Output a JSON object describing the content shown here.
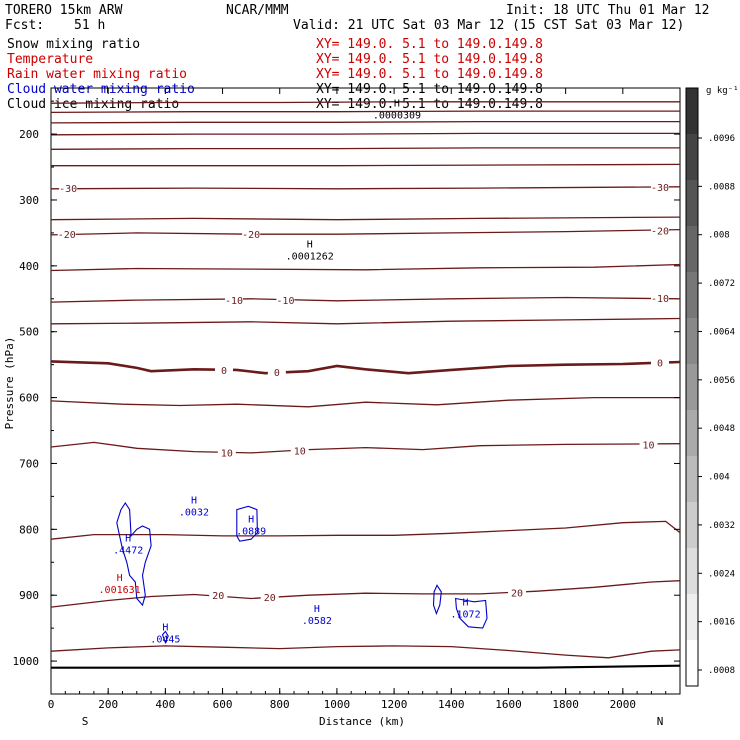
{
  "header": {
    "model": "TORERO  15km ARW",
    "org": "NCAR/MMM",
    "init": "Init: 18 UTC Thu 01 Mar 12",
    "fcst_label": "Fcst:",
    "fcst_value": "51 h",
    "valid": "Valid: 21 UTC Sat 03 Mar 12 (15 CST Sat 03 Mar 12)"
  },
  "fields": [
    {
      "name": "Snow mixing ratio",
      "coords": "XY= 149.0.  5.1 to 149.0.149.8",
      "color": "#000000",
      "coord_color": "#cc0000"
    },
    {
      "name": "Temperature",
      "coords": "XY= 149.0.  5.1 to 149.0.149.8",
      "color": "#cc0000",
      "coord_color": "#cc0000"
    },
    {
      "name": "Rain water mixing ratio",
      "coords": "XY= 149.0.  5.1 to 149.0.149.8",
      "color": "#cc0000",
      "coord_color": "#cc0000"
    },
    {
      "name": "Cloud water mixing ratio",
      "coords": "XY= 149.0.  5.1 to 149.0.149.8",
      "color": "#0000cc",
      "coord_color": "#000000"
    },
    {
      "name": "Cloud ice mixing ratio",
      "coords": "XY= 149.0.  5.1 to 149.0.149.8",
      "color": "#000000",
      "coord_color": "#000000"
    }
  ],
  "colors": {
    "temperature": "#6b1a1a",
    "cloud_water": "#0000cc",
    "rain_water": "#cc0000",
    "axis": "#000000"
  },
  "chart_data": {
    "type": "contour",
    "xlabel": "Distance (km)",
    "ylabel": "Pressure (hPa)",
    "xlim": [
      0,
      2200
    ],
    "ylim": [
      1050,
      130
    ],
    "x_ticks": [
      0,
      200,
      400,
      600,
      800,
      1000,
      1200,
      1400,
      1600,
      1800,
      2000
    ],
    "y_ticks": [
      200,
      300,
      400,
      500,
      600,
      700,
      800,
      900,
      1000
    ],
    "x_end_labels": {
      "left": "S",
      "right": "N"
    },
    "temperature_contours": [
      {
        "level": -45,
        "points": [
          [
            0,
            153
          ],
          [
            400,
            152
          ],
          [
            800,
            152
          ],
          [
            1200,
            151
          ],
          [
            1600,
            151
          ],
          [
            2200,
            151
          ]
        ]
      },
      {
        "level": -45,
        "points": [
          [
            0,
            167
          ],
          [
            500,
            166
          ],
          [
            1000,
            166
          ],
          [
            1500,
            165
          ],
          [
            2200,
            165
          ]
        ]
      },
      {
        "level": -40,
        "points": [
          [
            0,
            183
          ],
          [
            500,
            182
          ],
          [
            1000,
            182
          ],
          [
            1500,
            181
          ],
          [
            2200,
            181
          ]
        ]
      },
      {
        "level": -40,
        "points": [
          [
            0,
            201
          ],
          [
            500,
            200
          ],
          [
            1000,
            200
          ],
          [
            1500,
            199
          ],
          [
            2200,
            199
          ]
        ]
      },
      {
        "level": -35,
        "points": [
          [
            0,
            223
          ],
          [
            500,
            222
          ],
          [
            1000,
            222
          ],
          [
            1500,
            221
          ],
          [
            2200,
            221
          ]
        ]
      },
      {
        "level": -35,
        "points": [
          [
            0,
            248
          ],
          [
            500,
            248
          ],
          [
            1000,
            248
          ],
          [
            1500,
            247
          ],
          [
            2200,
            246
          ]
        ]
      },
      {
        "level": -30,
        "points": [
          [
            0,
            283
          ],
          [
            500,
            282
          ],
          [
            1000,
            283
          ],
          [
            1500,
            282
          ],
          [
            2200,
            280
          ]
        ]
      },
      {
        "level": -25,
        "points": [
          [
            0,
            330
          ],
          [
            500,
            328
          ],
          [
            1000,
            330
          ],
          [
            1500,
            328
          ],
          [
            2200,
            326
          ]
        ]
      },
      {
        "level": -20,
        "points": [
          [
            0,
            353
          ],
          [
            300,
            350
          ],
          [
            700,
            352
          ],
          [
            1000,
            352
          ],
          [
            1400,
            350
          ],
          [
            1800,
            348
          ],
          [
            2200,
            345
          ]
        ]
      },
      {
        "level": -15,
        "points": [
          [
            0,
            407
          ],
          [
            300,
            404
          ],
          [
            700,
            405
          ],
          [
            1100,
            406
          ],
          [
            1500,
            403
          ],
          [
            1900,
            402
          ],
          [
            2200,
            398
          ]
        ]
      },
      {
        "level": -10,
        "points": [
          [
            0,
            455
          ],
          [
            300,
            452
          ],
          [
            700,
            450
          ],
          [
            1000,
            453
          ],
          [
            1400,
            450
          ],
          [
            1800,
            448
          ],
          [
            2200,
            450
          ]
        ]
      },
      {
        "level": -5,
        "points": [
          [
            0,
            488
          ],
          [
            300,
            487
          ],
          [
            700,
            485
          ],
          [
            1000,
            488
          ],
          [
            1400,
            484
          ],
          [
            1800,
            482
          ],
          [
            2200,
            480
          ]
        ]
      },
      {
        "level": 0,
        "points": [
          [
            0,
            545
          ],
          [
            200,
            548
          ],
          [
            300,
            555
          ],
          [
            350,
            560
          ],
          [
            500,
            557
          ],
          [
            650,
            558
          ],
          [
            750,
            563
          ],
          [
            900,
            560
          ],
          [
            1000,
            552
          ],
          [
            1100,
            557
          ],
          [
            1250,
            563
          ],
          [
            1400,
            558
          ],
          [
            1600,
            552
          ],
          [
            1800,
            550
          ],
          [
            2000,
            549
          ],
          [
            2200,
            546
          ]
        ]
      },
      {
        "level": 5,
        "points": [
          [
            0,
            605
          ],
          [
            250,
            610
          ],
          [
            450,
            612
          ],
          [
            650,
            610
          ],
          [
            900,
            614
          ],
          [
            1100,
            607
          ],
          [
            1350,
            611
          ],
          [
            1600,
            604
          ],
          [
            1900,
            600
          ],
          [
            2200,
            600
          ]
        ]
      },
      {
        "level": 10,
        "points": [
          [
            0,
            675
          ],
          [
            150,
            668
          ],
          [
            300,
            677
          ],
          [
            500,
            682
          ],
          [
            700,
            684
          ],
          [
            900,
            679
          ],
          [
            1100,
            676
          ],
          [
            1300,
            679
          ],
          [
            1500,
            673
          ],
          [
            1800,
            671
          ],
          [
            2200,
            670
          ]
        ]
      },
      {
        "level": 15,
        "points": [
          [
            0,
            815
          ],
          [
            150,
            808
          ],
          [
            400,
            808
          ],
          [
            600,
            810
          ],
          [
            800,
            810
          ],
          [
            1000,
            809
          ],
          [
            1200,
            809
          ],
          [
            1400,
            806
          ],
          [
            1600,
            802
          ],
          [
            1800,
            798
          ],
          [
            2000,
            790
          ],
          [
            2150,
            788
          ],
          [
            2200,
            805
          ]
        ]
      },
      {
        "level": 20,
        "points": [
          [
            0,
            918
          ],
          [
            200,
            908
          ],
          [
            350,
            902
          ],
          [
            500,
            899
          ],
          [
            700,
            905
          ],
          [
            900,
            900
          ],
          [
            1100,
            897
          ],
          [
            1300,
            898
          ],
          [
            1500,
            898
          ],
          [
            1700,
            894
          ],
          [
            1900,
            888
          ],
          [
            2100,
            880
          ],
          [
            2200,
            878
          ]
        ]
      },
      {
        "level": 25,
        "points": [
          [
            0,
            985
          ],
          [
            200,
            980
          ],
          [
            400,
            977
          ],
          [
            600,
            979
          ],
          [
            800,
            981
          ],
          [
            1000,
            978
          ],
          [
            1200,
            977
          ],
          [
            1400,
            978
          ],
          [
            1600,
            984
          ],
          [
            1800,
            991
          ],
          [
            1950,
            995
          ],
          [
            2100,
            985
          ],
          [
            2200,
            983
          ]
        ]
      }
    ],
    "surface_pressure": [
      [
        0,
        1010
      ],
      [
        600,
        1010
      ],
      [
        1200,
        1010
      ],
      [
        1700,
        1010
      ],
      [
        2200,
        1007
      ]
    ],
    "contour_labels": [
      {
        "text": "-30",
        "x": 60,
        "p": 282
      },
      {
        "text": "-30",
        "x": 2130,
        "p": 280
      },
      {
        "text": "-20",
        "x": 55,
        "p": 352
      },
      {
        "text": "-20",
        "x": 700,
        "p": 352
      },
      {
        "text": "-20",
        "x": 2130,
        "p": 346
      },
      {
        "text": "-10",
        "x": 640,
        "p": 452
      },
      {
        "text": "-10",
        "x": 820,
        "p": 452
      },
      {
        "text": "-10",
        "x": 2130,
        "p": 449
      },
      {
        "text": "0",
        "x": 605,
        "p": 558
      },
      {
        "text": "0",
        "x": 790,
        "p": 561
      },
      {
        "text": "0",
        "x": 2130,
        "p": 547
      },
      {
        "text": "10",
        "x": 615,
        "p": 683
      },
      {
        "text": "10",
        "x": 870,
        "p": 680
      },
      {
        "text": "10",
        "x": 2090,
        "p": 671
      },
      {
        "text": "20",
        "x": 585,
        "p": 900
      },
      {
        "text": "20",
        "x": 765,
        "p": 903
      },
      {
        "text": "20",
        "x": 1630,
        "p": 896
      }
    ],
    "extrema": [
      {
        "mark": "H",
        "value": ".0000309",
        "x": 1210,
        "p": 163,
        "field": "snow"
      },
      {
        "mark": "H",
        "value": ".0001262",
        "x": 905,
        "p": 377,
        "field": "snow"
      },
      {
        "mark": "H",
        "value": ".0032",
        "x": 500,
        "p": 765,
        "field": "cloud_water"
      },
      {
        "mark": "H",
        "value": ".0889",
        "x": 700,
        "p": 794,
        "field": "cloud_water"
      },
      {
        "mark": "H",
        "value": ".4472",
        "x": 270,
        "p": 823,
        "field": "cloud_water"
      },
      {
        "mark": "H",
        "value": ".001631",
        "x": 240,
        "p": 883,
        "field": "rain_water"
      },
      {
        "mark": "H",
        "value": ".0582",
        "x": 930,
        "p": 930,
        "field": "cloud_water"
      },
      {
        "mark": "H",
        "value": ".1072",
        "x": 1450,
        "p": 920,
        "field": "cloud_water"
      },
      {
        "mark": "H",
        "value": ".0445",
        "x": 400,
        "p": 958,
        "field": "cloud_water"
      }
    ],
    "cloud_contours": [
      [
        [
          230,
          790
        ],
        [
          245,
          770
        ],
        [
          260,
          760
        ],
        [
          275,
          770
        ],
        [
          280,
          810
        ],
        [
          300,
          800
        ],
        [
          320,
          795
        ],
        [
          345,
          800
        ],
        [
          350,
          825
        ],
        [
          330,
          850
        ],
        [
          320,
          870
        ],
        [
          330,
          900
        ],
        [
          320,
          915
        ],
        [
          300,
          905
        ],
        [
          295,
          880
        ],
        [
          275,
          870
        ],
        [
          265,
          850
        ],
        [
          250,
          830
        ],
        [
          240,
          810
        ],
        [
          230,
          790
        ]
      ],
      [
        [
          650,
          770
        ],
        [
          690,
          765
        ],
        [
          720,
          770
        ],
        [
          722,
          805
        ],
        [
          700,
          815
        ],
        [
          660,
          818
        ],
        [
          650,
          810
        ]
      ],
      [
        [
          1415,
          905
        ],
        [
          1480,
          910
        ],
        [
          1520,
          908
        ],
        [
          1525,
          935
        ],
        [
          1510,
          950
        ],
        [
          1460,
          948
        ],
        [
          1430,
          935
        ],
        [
          1418,
          920
        ],
        [
          1415,
          905
        ]
      ],
      [
        [
          1340,
          895
        ],
        [
          1350,
          885
        ],
        [
          1365,
          895
        ],
        [
          1360,
          915
        ],
        [
          1348,
          928
        ],
        [
          1338,
          915
        ],
        [
          1340,
          895
        ]
      ],
      [
        [
          390,
          960
        ],
        [
          400,
          972
        ],
        [
          410,
          962
        ],
        [
          400,
          955
        ],
        [
          390,
          960
        ]
      ]
    ],
    "colorbar": {
      "unit_label": "g kg⁻¹",
      "tick_labels": [
        ".0096",
        ".0088",
        ".008",
        ".0072",
        ".0064",
        ".0056",
        ".0048",
        ".004",
        ".0032",
        ".0024",
        ".0016",
        ".0008"
      ],
      "range": [
        0,
        0.0104
      ]
    }
  }
}
